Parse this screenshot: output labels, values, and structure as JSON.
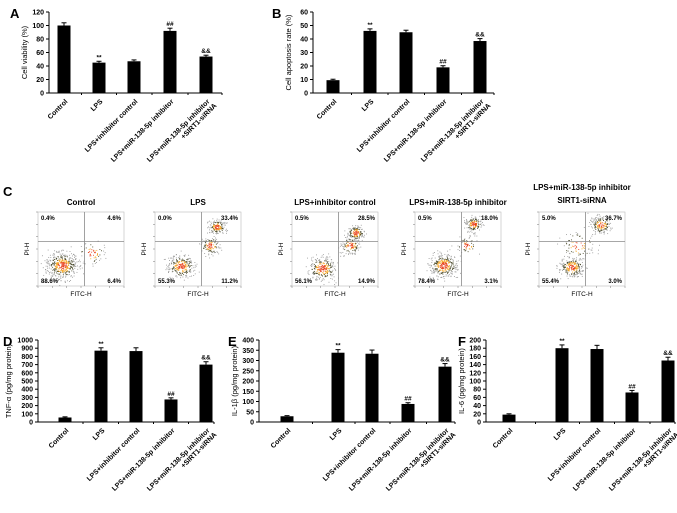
{
  "chart_data": [
    {
      "id": "A",
      "type": "bar",
      "panel_label": "A",
      "ylabel": "Cell viability (%)",
      "ylim": [
        0,
        120
      ],
      "yticks": [
        0,
        20,
        40,
        60,
        80,
        100,
        120
      ],
      "categories": [
        "Control",
        "LPS",
        "LPS+inhibitor control",
        "LPS+miR-138-5p inhibitor",
        [
          "LPS+miR-138-5p inhibitor",
          "+SIRT1-siRNA"
        ]
      ],
      "values": [
        100,
        45,
        47,
        92,
        54
      ],
      "errors": [
        4,
        2,
        2,
        4,
        2
      ],
      "annotations": [
        "",
        "**",
        "",
        "##",
        "&&"
      ]
    },
    {
      "id": "B",
      "type": "bar",
      "panel_label": "B",
      "ylabel": "Cell apoptosis rate (%)",
      "ylim": [
        0,
        60
      ],
      "yticks": [
        0,
        10,
        20,
        30,
        40,
        50,
        60
      ],
      "categories": [
        "Control",
        "LPS",
        "LPS+inhibitor control",
        "LPS+miR-138-5p inhibitor",
        [
          "LPS+miR-138-5p inhibitor",
          "+SIRT1-siRNA"
        ]
      ],
      "values": [
        9.5,
        46,
        45,
        19,
        38.5
      ],
      "errors": [
        0.7,
        1.5,
        1.5,
        1.2,
        1.8
      ],
      "annotations": [
        "",
        "**",
        "",
        "##",
        "&&"
      ]
    },
    {
      "id": "C",
      "type": "scatter",
      "panel_label": "C",
      "xlabel": "FITC-H",
      "ylabel": "PI-H",
      "plots": [
        {
          "title": [
            "Control"
          ],
          "quadrants": {
            "ul": "0.4%",
            "ur": "4.6%",
            "ll": "88.6%",
            "lr": "6.4%"
          }
        },
        {
          "title": [
            "LPS"
          ],
          "quadrants": {
            "ul": "0.0%",
            "ur": "33.4%",
            "ll": "55.3%",
            "lr": "11.2%"
          }
        },
        {
          "title": [
            "LPS+inhibitor control"
          ],
          "quadrants": {
            "ul": "0.5%",
            "ur": "28.5%",
            "ll": "56.1%",
            "lr": "14.9%"
          }
        },
        {
          "title": [
            "LPS+miR-138-5p inhibitor"
          ],
          "quadrants": {
            "ul": "0.5%",
            "ur": "18.0%",
            "ll": "78.4%",
            "lr": "3.1%"
          }
        },
        {
          "title": [
            "LPS+miR-138-5p inhibitor",
            "SIRT1-siRNA"
          ],
          "quadrants": {
            "ul": "5.0%",
            "ur": "36.7%",
            "ll": "55.4%",
            "lr": "3.0%"
          }
        }
      ]
    },
    {
      "id": "D",
      "type": "bar",
      "panel_label": "D",
      "ylabel": "TNF-α (pg/mg protein)",
      "ylim": [
        0,
        1000
      ],
      "yticks": [
        0,
        100,
        200,
        300,
        400,
        500,
        600,
        700,
        800,
        900,
        1000
      ],
      "categories": [
        "Control",
        "LPS",
        "LPS+inhibitor control",
        "LPS+miR-138-5p inhibitor",
        [
          "LPS+miR-138-5p inhibitor",
          "+SIRT1-siRNA"
        ]
      ],
      "values": [
        55,
        870,
        865,
        275,
        700
      ],
      "errors": [
        8,
        35,
        40,
        20,
        35
      ],
      "annotations": [
        "",
        "**",
        "",
        "##",
        "&&"
      ]
    },
    {
      "id": "E",
      "type": "bar",
      "panel_label": "E",
      "ylabel": "IL-1β (pg/mg protein)",
      "ylim": [
        0,
        400
      ],
      "yticks": [
        0,
        50,
        100,
        150,
        200,
        250,
        300,
        350,
        400
      ],
      "categories": [
        "Control",
        "LPS",
        "LPS+inhibitor control",
        "LPS+miR-138-5p inhibitor",
        [
          "LPS+miR-138-5p inhibitor",
          "+SIRT1-siRNA"
        ]
      ],
      "values": [
        28,
        338,
        333,
        88,
        270
      ],
      "errors": [
        3,
        15,
        18,
        6,
        15
      ],
      "annotations": [
        "",
        "**",
        "",
        "##",
        "&&"
      ]
    },
    {
      "id": "F",
      "type": "bar",
      "panel_label": "F",
      "ylabel": "IL-6 (pg/mg protein)",
      "ylim": [
        0,
        200
      ],
      "yticks": [
        0,
        20,
        40,
        60,
        80,
        100,
        120,
        140,
        160,
        180,
        200
      ],
      "categories": [
        "Control",
        "LPS",
        "LPS+inhibitor control",
        "LPS+miR-138-5p inhibitor",
        [
          "LPS+miR-138-5p inhibitor",
          "+SIRT1-siRNA"
        ]
      ],
      "values": [
        18,
        180,
        178,
        72,
        150
      ],
      "errors": [
        2,
        8,
        9,
        5,
        8
      ],
      "annotations": [
        "",
        "**",
        "",
        "##",
        "&&"
      ]
    }
  ],
  "colors": {
    "bar": "#000000",
    "axis": "#000000",
    "quadrant_line": "#8a8a8a"
  }
}
